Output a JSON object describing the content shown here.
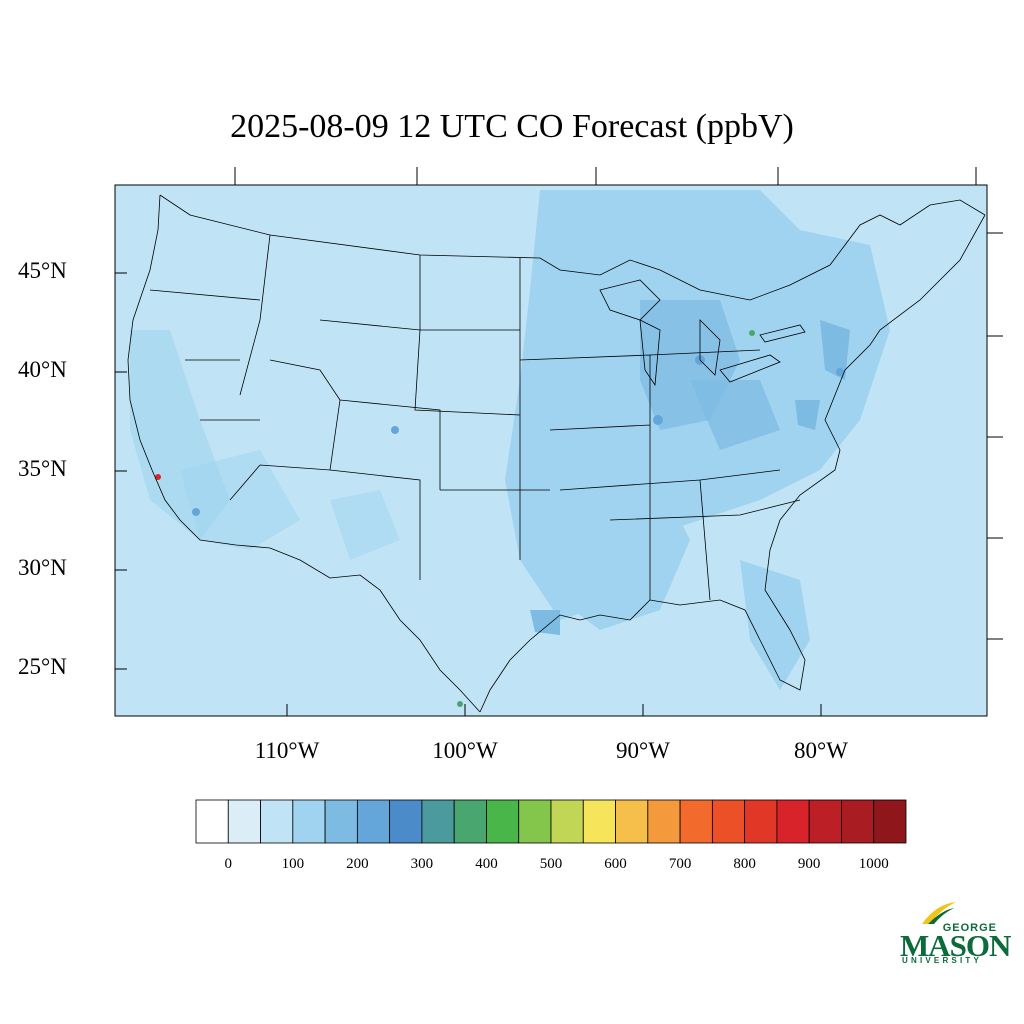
{
  "title": "2025-08-09 12 UTC CO Forecast (ppbV)",
  "lat_labels": [
    "45°N",
    "40°N",
    "35°N",
    "30°N",
    "25°N"
  ],
  "lon_labels": [
    "110°W",
    "100°W",
    "90°W",
    "80°W"
  ],
  "colorbar": {
    "colors": [
      "#ffffff",
      "#dbeef8",
      "#c0e4f6",
      "#9fd3ef",
      "#7ebbe3",
      "#64a5da",
      "#4b8bc9",
      "#4a9a9e",
      "#48a66e",
      "#49b64a",
      "#84c54b",
      "#c1d655",
      "#f6e45a",
      "#f6bf4c",
      "#f5993d",
      "#f26b2d",
      "#eb5027",
      "#e13727",
      "#d8232a",
      "#bd1f26",
      "#a81c22",
      "#8f171c"
    ],
    "tick_labels": [
      "0",
      "100",
      "200",
      "300",
      "400",
      "500",
      "600",
      "700",
      "800",
      "900",
      "1000"
    ]
  },
  "logo": {
    "top_text": "GEORGE",
    "main_text": "MASON",
    "bottom_text": "UNIVERSITY",
    "color": "#0b6b3a",
    "accent": "#f0c419"
  },
  "map_colors": {
    "background": "#c0e4f6",
    "elevated": "#9fd3ef",
    "high": "#7ebbe3",
    "spot_low": "#64a5da",
    "spot_mid": "#48a66e",
    "spot_hot": "#d8232a",
    "boundary": "#000000"
  }
}
